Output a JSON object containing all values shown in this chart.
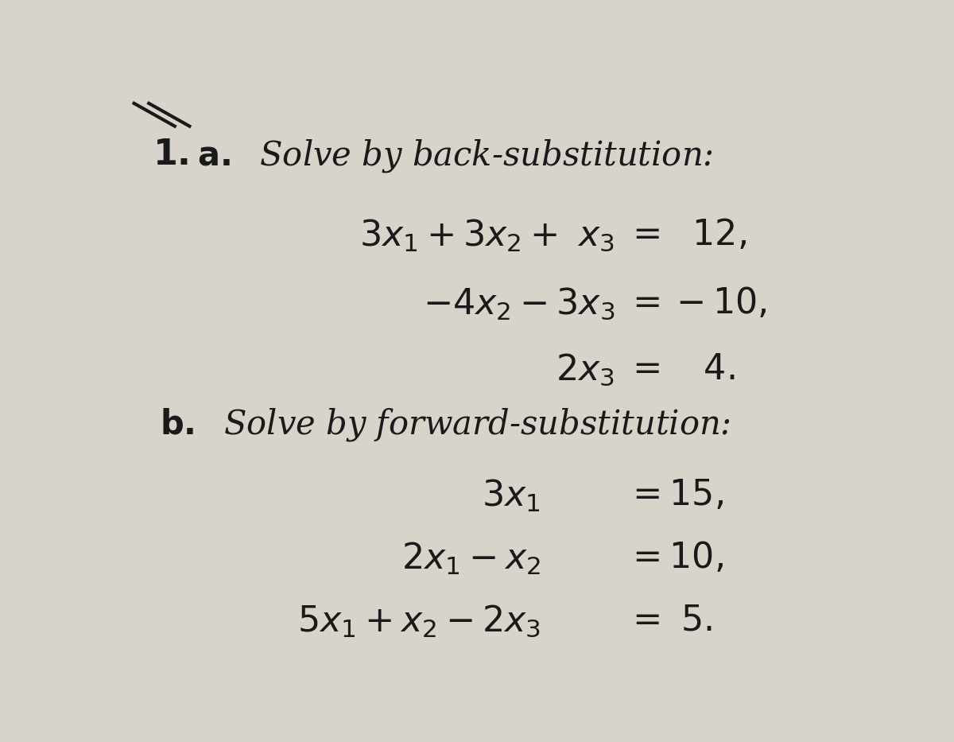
{
  "bg_color": "#d8d4cc",
  "text_color": "#1a1a1a",
  "figsize": [
    12.0,
    9.33
  ],
  "dpi": 100
}
